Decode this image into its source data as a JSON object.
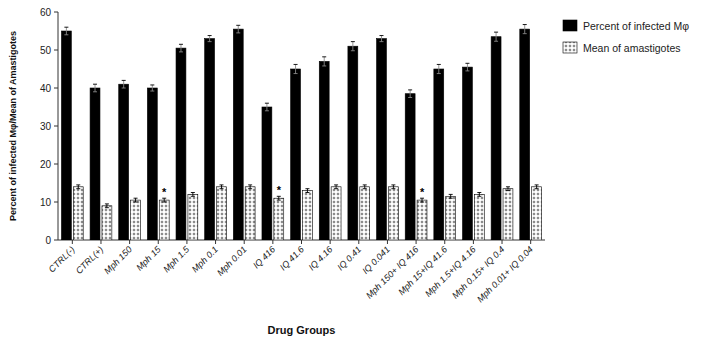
{
  "chart_data": {
    "type": "bar",
    "categories": [
      "CTRL(-)",
      "CTRL(+)",
      "Mph 150",
      "Mph 15",
      "Mph 1.5",
      "Mph 0.1",
      "Mph 0.01",
      "IQ 416",
      "IQ 41.6",
      "IQ 4.16",
      "IQ 0.41",
      "IQ 0.041",
      "Mph 150+ IQ 416",
      "Mph 15+IQ 41.6",
      "Mph 1.5+IQ 4.16",
      "Mph 0.15+ IQ 0.4",
      "Mph 0.01+ IQ 0.04"
    ],
    "series": [
      {
        "name": "Percent of infected Mφ",
        "color": "black",
        "values": [
          55,
          40,
          41,
          40,
          50.5,
          53,
          55.5,
          35,
          45,
          47,
          51,
          53,
          38.5,
          45,
          45.5,
          53.5,
          55.5
        ],
        "errors": [
          1.0,
          1.0,
          1.0,
          0.8,
          1.0,
          0.8,
          1.0,
          1.0,
          1.2,
          1.2,
          1.2,
          0.8,
          1.0,
          1.2,
          1.0,
          1.2,
          1.2
        ]
      },
      {
        "name": "Mean of amastigotes",
        "color": "white",
        "values": [
          14,
          9,
          10.5,
          10.5,
          12,
          14,
          14,
          11,
          13,
          14,
          14,
          14,
          10.5,
          11.5,
          12,
          13.5,
          14
        ],
        "errors": [
          0.5,
          0.5,
          0.5,
          0.5,
          0.5,
          0.5,
          0.5,
          0.5,
          0.5,
          0.5,
          0.5,
          0.5,
          0.5,
          0.5,
          0.5,
          0.5,
          0.5
        ]
      }
    ],
    "annotations": [
      {
        "text": "*",
        "series": 1,
        "category": "Mph 15"
      },
      {
        "text": "*",
        "series": 1,
        "category": "IQ 416"
      },
      {
        "text": "*",
        "series": 1,
        "category": "Mph 150+ IQ 416"
      }
    ],
    "ylabel": "Percent of infected Mφ/Mean of Amastigotes",
    "xlabel": "Drug Groups",
    "ylim": [
      0,
      60
    ],
    "yticks": [
      0,
      10,
      20,
      30,
      40,
      50,
      60
    ],
    "legend": "right"
  }
}
